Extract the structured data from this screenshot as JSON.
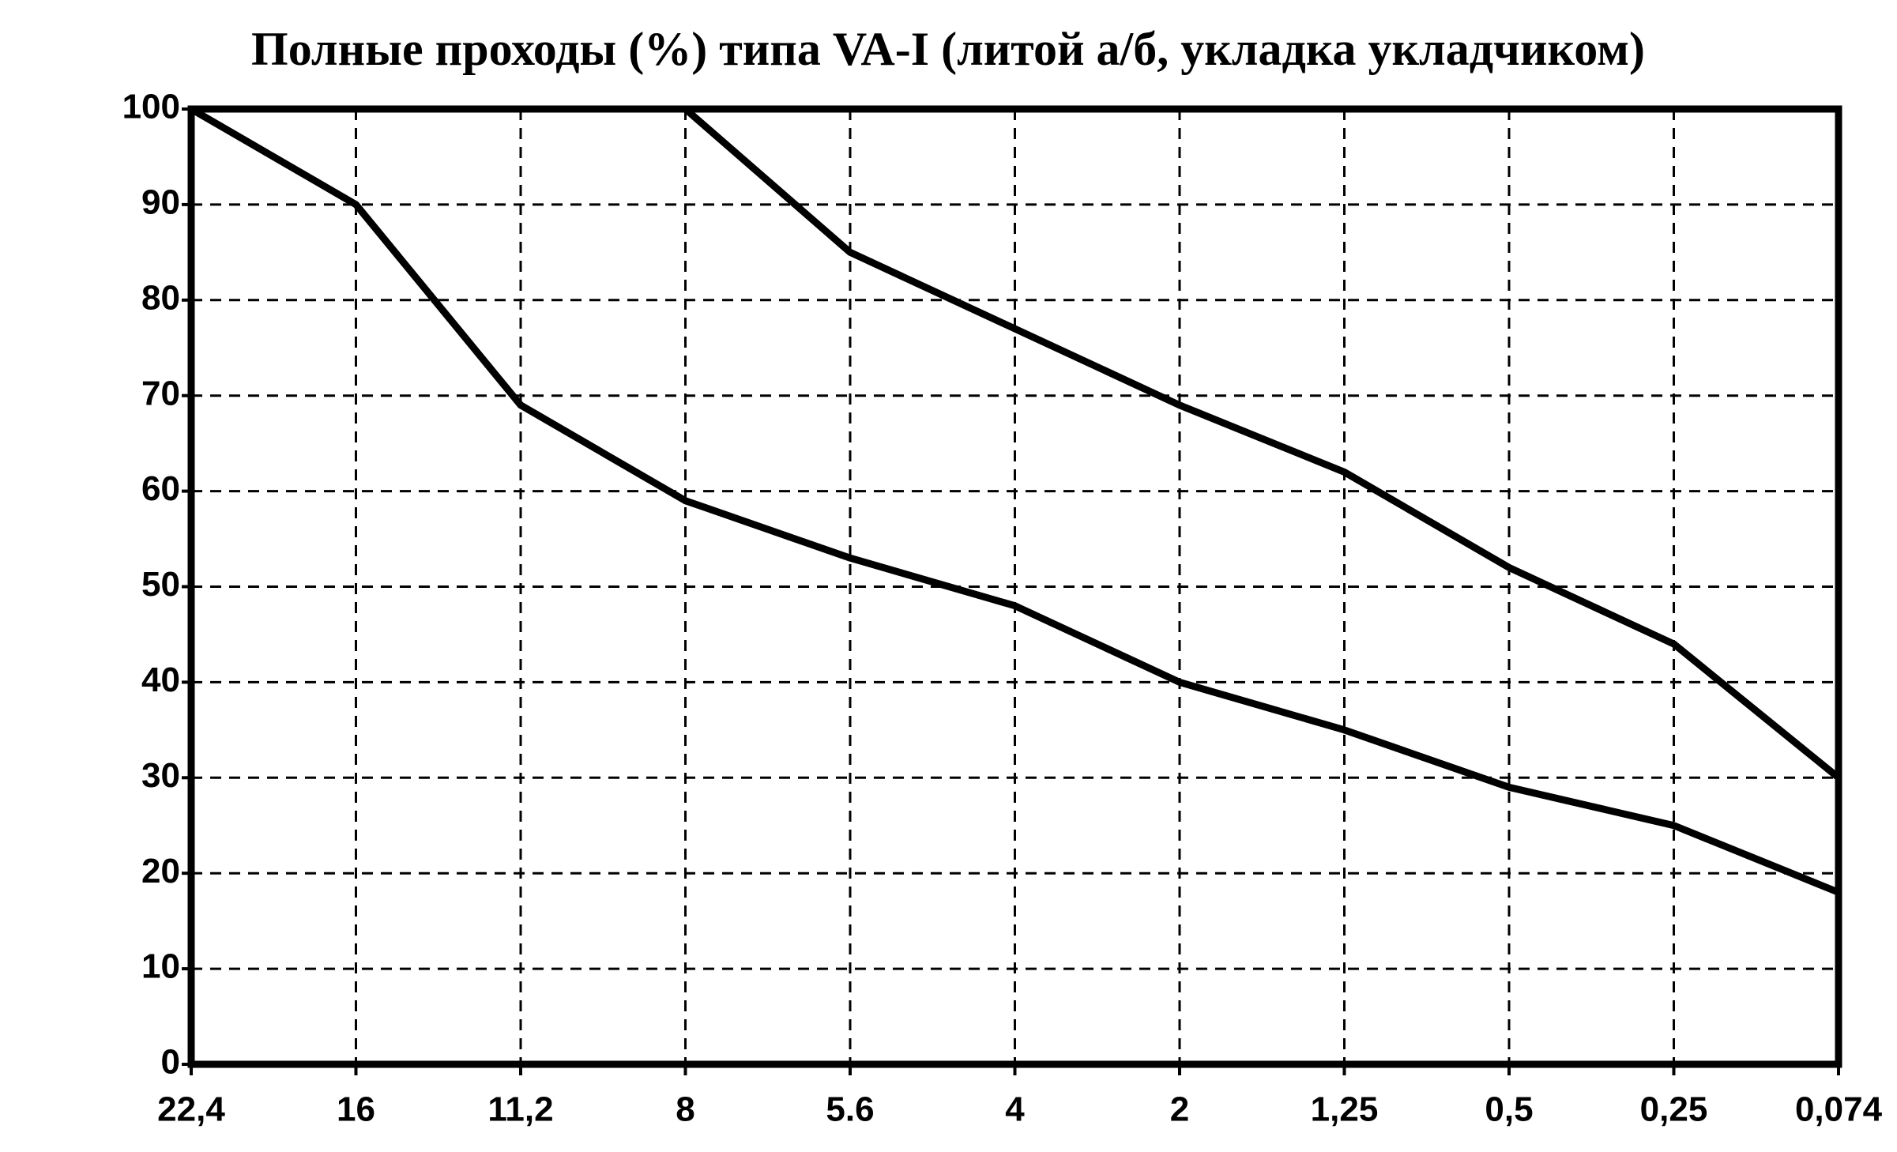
{
  "chart_data": {
    "type": "line",
    "title": "Полные проходы (%) типа VA-I (литой а/б, укладка укладчиком)",
    "categories": [
      "22,4",
      "16",
      "11,2",
      "8",
      "5.6",
      "4",
      "2",
      "1,25",
      "0,5",
      "0,25",
      "0,074"
    ],
    "series": [
      {
        "color": "#000000",
        "values": [
          100,
          100,
          100,
          100,
          85,
          77,
          69,
          62,
          52,
          44,
          30
        ]
      },
      {
        "color": "#000000",
        "values": [
          100,
          90,
          69,
          59,
          53,
          48,
          40,
          35,
          29,
          25,
          18
        ]
      }
    ],
    "ylim": [
      0,
      100
    ],
    "yticks": [
      0,
      10,
      20,
      30,
      40,
      50,
      60,
      70,
      80,
      90,
      100
    ],
    "grid": true
  }
}
